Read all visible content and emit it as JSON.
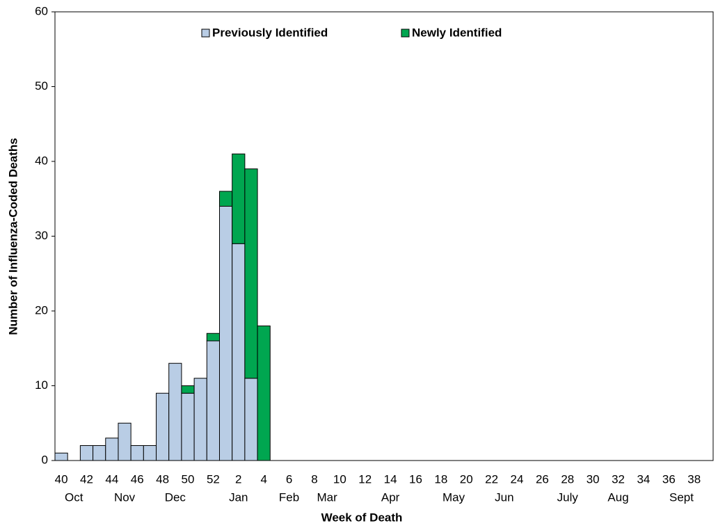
{
  "chart_data": {
    "type": "stacked-bar",
    "y_label": "Number of Influenza-Coded Deaths",
    "x_label": "Week of Death",
    "categories": [
      "40",
      null,
      "42",
      null,
      "44",
      null,
      "46",
      null,
      "48",
      null,
      "50",
      null,
      "52",
      null,
      "2",
      null,
      "4",
      null,
      "6",
      null,
      "8",
      null,
      "10",
      null,
      "12",
      null,
      "14",
      null,
      "16",
      null,
      "18",
      null,
      "20",
      null,
      "22",
      null,
      "24",
      null,
      "26",
      null,
      "28",
      null,
      "30",
      null,
      "32",
      null,
      "34",
      null,
      "36",
      null,
      "38",
      null
    ],
    "months": [
      null,
      "Oct",
      null,
      null,
      null,
      "Nov",
      null,
      null,
      null,
      "Dec",
      null,
      null,
      null,
      null,
      "Jan",
      null,
      null,
      null,
      "Feb",
      null,
      null,
      "Mar",
      null,
      null,
      null,
      null,
      "Apr",
      null,
      null,
      null,
      null,
      "May",
      null,
      null,
      null,
      "Jun",
      null,
      null,
      null,
      null,
      "July",
      null,
      null,
      null,
      "Aug",
      null,
      null,
      null,
      null,
      "Sept",
      null,
      null
    ],
    "series": [
      {
        "name": "Previously Identified",
        "color": "#b9cde5",
        "values": [
          1,
          0,
          2,
          2,
          3,
          5,
          2,
          2,
          9,
          13,
          9,
          11,
          16,
          34,
          29,
          11,
          0,
          0,
          0,
          0,
          0,
          0,
          0,
          0,
          0,
          0,
          0,
          0,
          0,
          0,
          0,
          0,
          0,
          0,
          0,
          0,
          0,
          0,
          0,
          0,
          0,
          0,
          0,
          0,
          0,
          0,
          0,
          0,
          0,
          0,
          0,
          0
        ]
      },
      {
        "name": "Newly Identified",
        "color": "#00a650",
        "values": [
          0,
          0,
          0,
          0,
          0,
          0,
          0,
          0,
          0,
          0,
          1,
          0,
          1,
          2,
          12,
          28,
          18,
          0,
          0,
          0,
          0,
          0,
          0,
          0,
          0,
          0,
          0,
          0,
          0,
          0,
          0,
          0,
          0,
          0,
          0,
          0,
          0,
          0,
          0,
          0,
          0,
          0,
          0,
          0,
          0,
          0,
          0,
          0,
          0,
          0,
          0,
          0
        ]
      }
    ],
    "ylim": [
      0,
      60
    ],
    "yticks": [
      0,
      10,
      20,
      30,
      40,
      50,
      60
    ],
    "grid": false,
    "legend": "top"
  }
}
